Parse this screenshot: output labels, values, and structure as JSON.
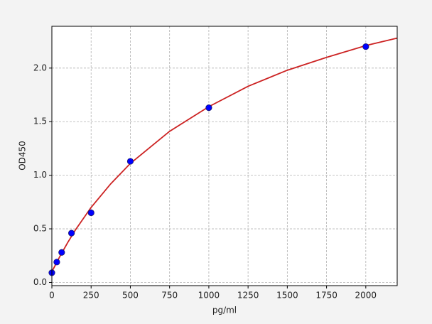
{
  "chart_data": {
    "type": "scatter",
    "x_label": "pg/ml",
    "y_label": "OD450",
    "xlim": [
      0,
      2200
    ],
    "ylim": [
      -0.03,
      2.39
    ],
    "xticks": [
      0,
      250,
      500,
      750,
      1000,
      1250,
      1500,
      1750,
      2000
    ],
    "yticks": [
      {
        "value": 0,
        "label": "0.0"
      },
      0.5,
      {
        "value": 1,
        "label": "1.0"
      },
      1.5,
      {
        "value": 2,
        "label": "2.0"
      }
    ],
    "grid": true,
    "series": [
      {
        "type": "scatter",
        "color": "#0000ff",
        "x": [
          0,
          31.25,
          62.5,
          125,
          250,
          500,
          1000,
          2000
        ],
        "values": [
          0.09,
          0.19,
          0.28,
          0.46,
          0.65,
          1.13,
          1.63,
          2.2
        ]
      },
      {
        "type": "line",
        "color": "#cc2222",
        "x": [
          0,
          25,
          50,
          100,
          150,
          250,
          375,
          500,
          750,
          1000,
          1250,
          1500,
          1750,
          2000,
          2200
        ],
        "values": [
          0.1,
          0.17,
          0.24,
          0.37,
          0.49,
          0.7,
          0.92,
          1.11,
          1.41,
          1.64,
          1.83,
          1.98,
          2.1,
          2.21,
          2.28
        ]
      }
    ]
  }
}
